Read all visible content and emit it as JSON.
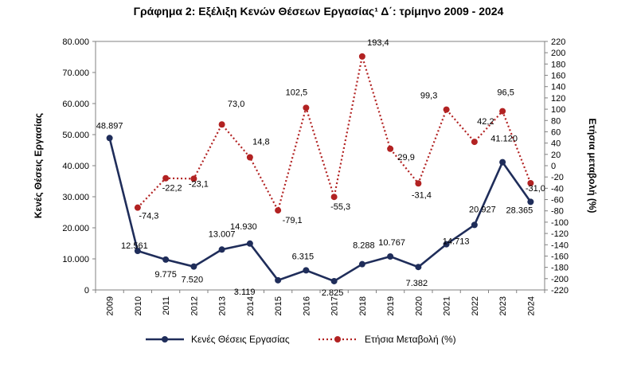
{
  "chart_data": {
    "type": "line",
    "title": "Γράφημα 2: Εξέλιξη Κενών Θέσεων Εργασίας¹ Δ΄: τρίμηνο 2009 - 2024",
    "categories": [
      "2009",
      "2010",
      "2011",
      "2012",
      "2013",
      "2014",
      "2015",
      "2016",
      "2017",
      "2018",
      "2019",
      "2020",
      "2021",
      "2022",
      "2023",
      "2024"
    ],
    "ylabel": "Κενές Θέσεις Εργασίας",
    "y2label": "Ετήσια μεταβολή (%)",
    "ylim": [
      0,
      80000
    ],
    "y2lim": [
      -220,
      220
    ],
    "y_ticks": [
      "0",
      "10.000",
      "20.000",
      "30.000",
      "40.000",
      "50.000",
      "60.000",
      "70.000",
      "80.000"
    ],
    "y2_ticks": [
      "-220",
      "-200",
      "-180",
      "-160",
      "-140",
      "-120",
      "-100",
      "-80",
      "-60",
      "-40",
      "-20",
      "0",
      "20",
      "40",
      "60",
      "80",
      "100",
      "120",
      "140",
      "160",
      "180",
      "200",
      "220"
    ],
    "grid": false,
    "legend_position": "bottom",
    "colors": {
      "vacancies": "#1f2d5a",
      "change": "#b22222"
    },
    "series": [
      {
        "name": "Κενές Θέσεις Εργασίας",
        "axis": "left",
        "style": "solid",
        "values": [
          48897,
          12561,
          9775,
          7520,
          13007,
          14930,
          3119,
          6315,
          2825,
          8288,
          10767,
          7382,
          14713,
          20927,
          41120,
          28365
        ],
        "labels": [
          "48.897",
          "12.561",
          "9.775",
          "7.520",
          "13.007",
          "14.930",
          "3.119",
          "6.315",
          "2.825",
          "8.288",
          "10.767",
          "7.382",
          "14.713",
          "20.927",
          "41.120",
          "28.365"
        ]
      },
      {
        "name": "Ετήσια Μεταβολή (%)",
        "axis": "right",
        "style": "dotted",
        "values": [
          null,
          -74.3,
          -22.2,
          -23.1,
          73.0,
          14.8,
          -79.1,
          102.5,
          -55.3,
          193.4,
          29.9,
          -31.4,
          99.3,
          42.2,
          96.5,
          -31.0
        ],
        "labels": [
          "",
          "-74,3",
          "-22,2",
          "-23,1",
          "73,0",
          "14,8",
          "-79,1",
          "102,5",
          "-55,3",
          "193,4",
          "29,9",
          "-31,4",
          "99,3",
          "42,2",
          "96,5",
          "-31,0"
        ]
      }
    ]
  }
}
